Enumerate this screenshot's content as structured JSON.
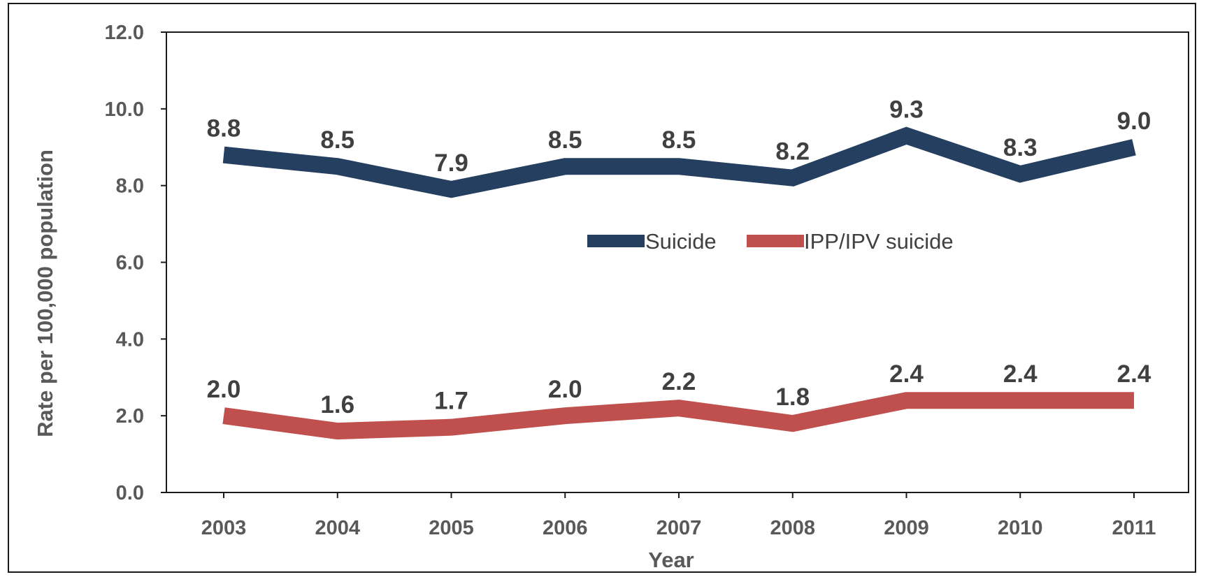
{
  "chart_data": {
    "type": "line",
    "xlabel": "Year",
    "ylabel": "Rate per 100,000 population",
    "ylim": [
      0,
      12
    ],
    "yticks": [
      "0.0",
      "2.0",
      "4.0",
      "6.0",
      "8.0",
      "10.0",
      "12.0"
    ],
    "categories": [
      "2003",
      "2004",
      "2005",
      "2006",
      "2007",
      "2008",
      "2009",
      "2010",
      "2011"
    ],
    "grid": false,
    "legend_position": "center",
    "series": [
      {
        "name": "Suicide",
        "color": "#243F60",
        "values": [
          8.8,
          8.5,
          7.9,
          8.5,
          8.5,
          8.2,
          9.3,
          8.3,
          9.0
        ],
        "labels": [
          "8.8",
          "8.5",
          "7.9",
          "8.5",
          "8.5",
          "8.2",
          "9.3",
          "8.3",
          "9.0"
        ]
      },
      {
        "name": "IPP/IPV suicide",
        "color": "#C0504D",
        "values": [
          2.0,
          1.6,
          1.7,
          2.0,
          2.2,
          1.8,
          2.4,
          2.4,
          2.4
        ],
        "labels": [
          "2.0",
          "1.6",
          "1.7",
          "2.0",
          "2.2",
          "1.8",
          "2.4",
          "2.4",
          "2.4"
        ]
      }
    ]
  }
}
